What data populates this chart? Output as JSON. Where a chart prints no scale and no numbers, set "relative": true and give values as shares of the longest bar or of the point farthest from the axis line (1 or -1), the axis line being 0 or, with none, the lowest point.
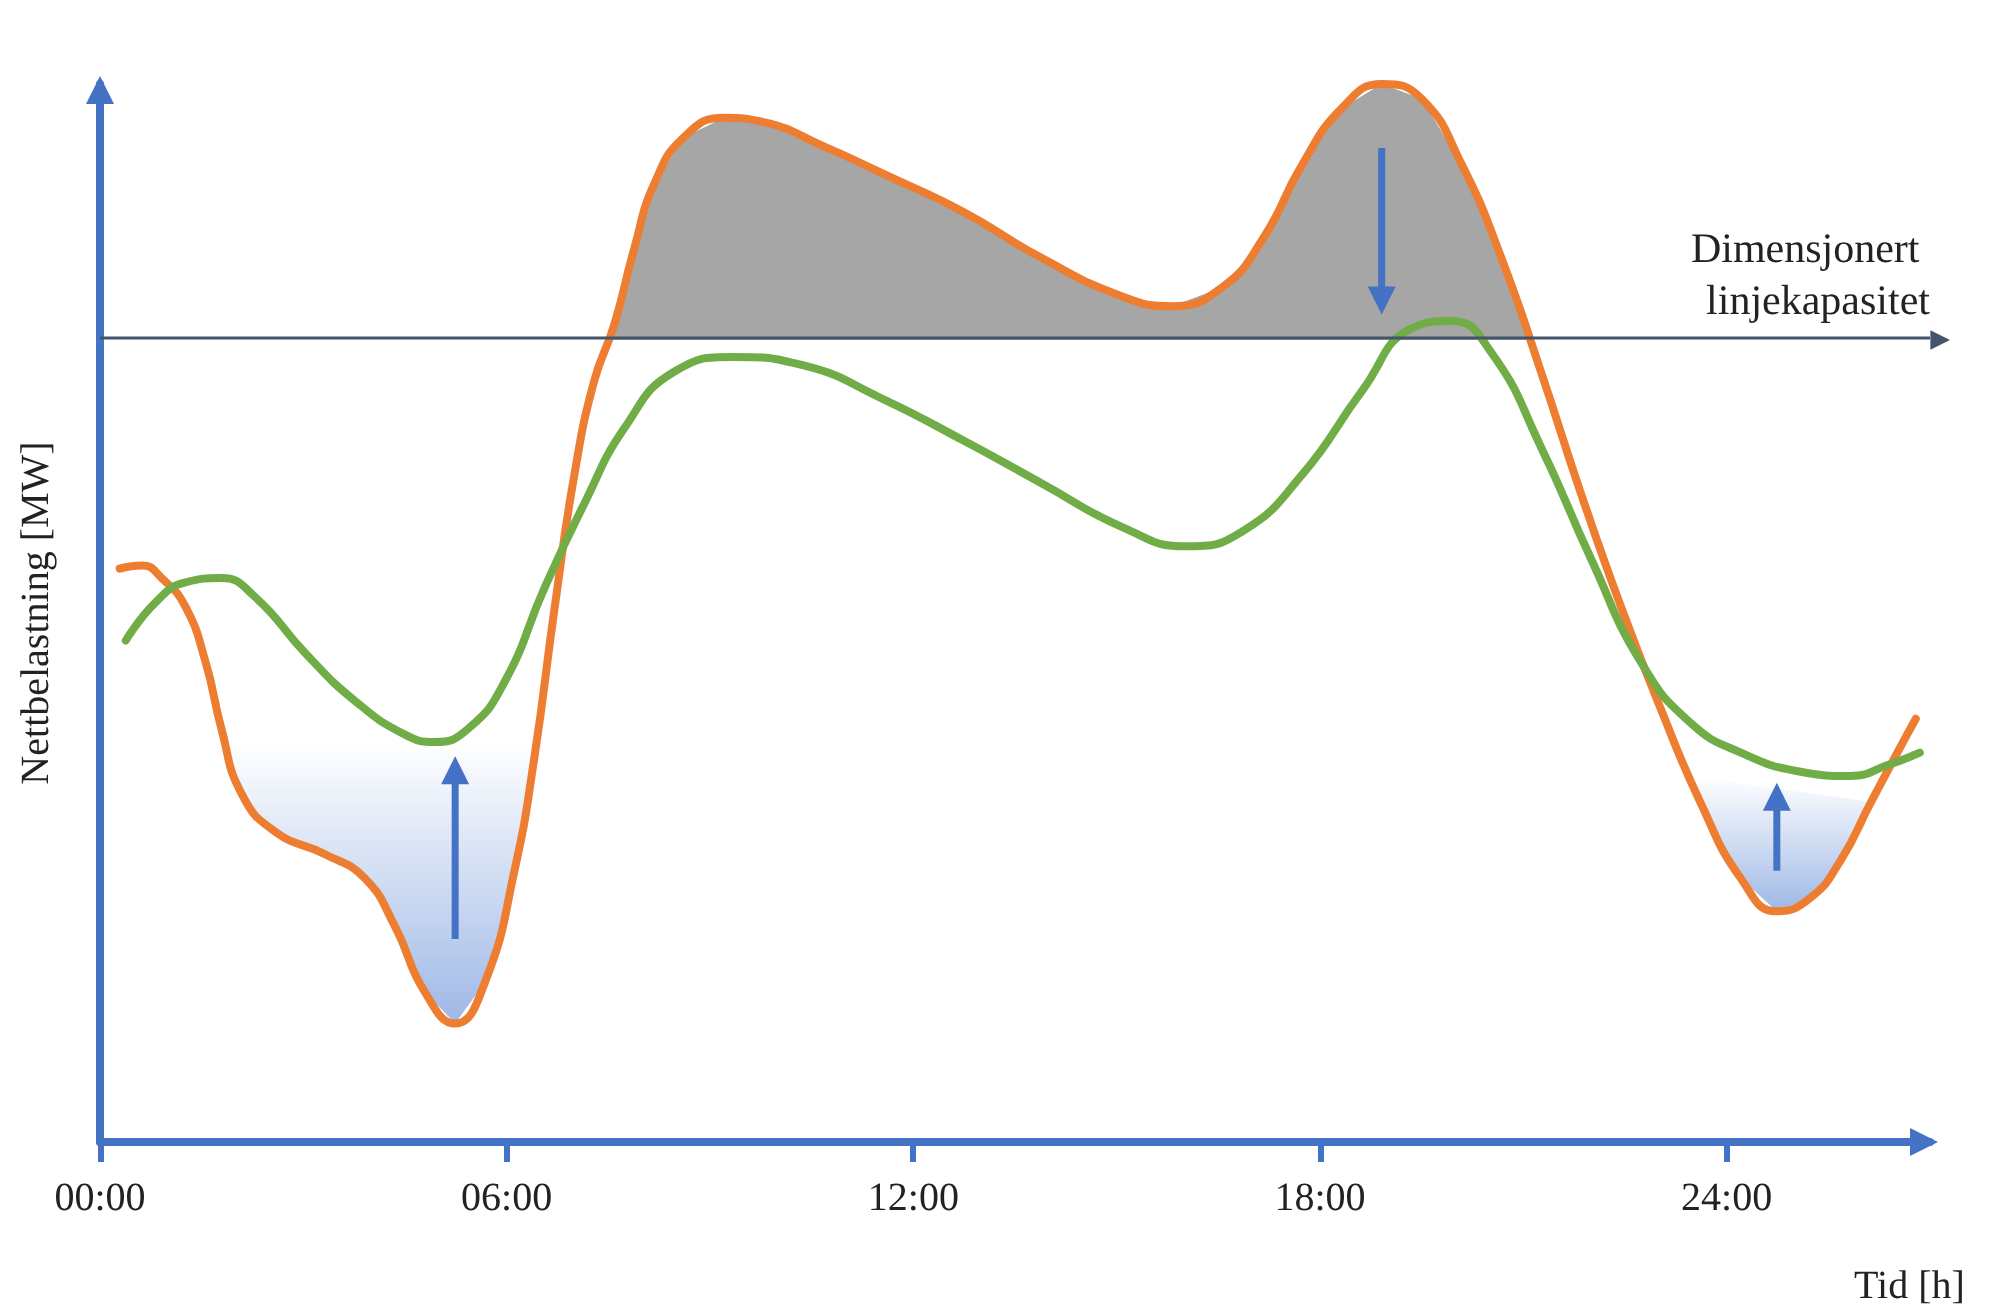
{
  "chart_data": {
    "type": "line",
    "relative": true,
    "xlabel": "Tid [h]",
    "ylabel": "Nettbelastning [MW]",
    "xlim": [
      0,
      27
    ],
    "xticks": [
      {
        "value": 0,
        "label": "00:00"
      },
      {
        "value": 6,
        "label": "06:00"
      },
      {
        "value": 12,
        "label": "12:00"
      },
      {
        "value": 18,
        "label": "18:00"
      },
      {
        "value": 24,
        "label": "24:00"
      }
    ],
    "grid": false,
    "marker": "none",
    "line_style": "solid",
    "ref_lines": [
      {
        "axis": "y",
        "value": 0.758,
        "label": "Dimensjonert linjekapasitet",
        "color": "#44546a"
      }
    ],
    "series": [
      {
        "color": "#ed7d31",
        "x": [
          0.29,
          0.62,
          0.91,
          1.26,
          1.56,
          1.79,
          2.09,
          2.59,
          3.32,
          3.91,
          4.35,
          4.79,
          5.24,
          5.68,
          6.12,
          6.41,
          6.71,
          7.0,
          7.29,
          7.59,
          7.88,
          8.18,
          8.62,
          9.21,
          9.79,
          10.68,
          11.56,
          12.74,
          13.91,
          15.09,
          15.82,
          16.56,
          17.15,
          17.74,
          18.32,
          18.91,
          19.5,
          20.09,
          20.68,
          21.26,
          21.85,
          22.44,
          23.03,
          23.62,
          24.21,
          24.74,
          25.24,
          25.68,
          26.12,
          26.56,
          26.79
        ],
        "values": [
          0.542,
          0.545,
          0.533,
          0.506,
          0.453,
          0.391,
          0.329,
          0.293,
          0.272,
          0.249,
          0.204,
          0.142,
          0.112,
          0.151,
          0.258,
          0.364,
          0.506,
          0.631,
          0.719,
          0.773,
          0.844,
          0.906,
          0.95,
          0.968,
          0.964,
          0.941,
          0.915,
          0.879,
          0.835,
          0.799,
          0.79,
          0.808,
          0.853,
          0.924,
          0.977,
          1,
          0.986,
          0.924,
          0.835,
          0.728,
          0.613,
          0.506,
          0.409,
          0.32,
          0.249,
          0.218,
          0.231,
          0.266,
          0.32,
          0.373,
          0.4
        ]
      },
      {
        "color": "#70ad47",
        "x": [
          0.38,
          0.82,
          1.26,
          1.79,
          2.29,
          3.03,
          3.76,
          4.5,
          4.94,
          5.44,
          5.97,
          6.56,
          7.15,
          7.74,
          8.47,
          9.35,
          10.38,
          11.56,
          12.74,
          13.91,
          15.09,
          16.03,
          16.85,
          17.74,
          18.62,
          19.35,
          19.94,
          20.53,
          21.26,
          22.0,
          22.74,
          23.47,
          24.21,
          25.09,
          25.82,
          26.41,
          26.85
        ],
        "values": [
          0.474,
          0.51,
          0.529,
          0.533,
          0.515,
          0.462,
          0.417,
          0.385,
          0.378,
          0.391,
          0.435,
          0.524,
          0.604,
          0.675,
          0.728,
          0.742,
          0.734,
          0.702,
          0.663,
          0.622,
          0.581,
          0.563,
          0.577,
          0.631,
          0.71,
          0.769,
          0.776,
          0.746,
          0.657,
          0.551,
          0.453,
          0.396,
          0.368,
          0.35,
          0.346,
          0.357,
          0.368
        ]
      }
    ]
  }
}
